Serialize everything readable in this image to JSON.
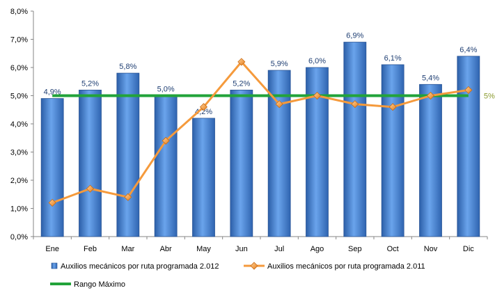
{
  "chart_data": {
    "type": "bar",
    "categories": [
      "Ene",
      "Feb",
      "Mar",
      "Abr",
      "May",
      "Jun",
      "Jul",
      "Ago",
      "Sep",
      "Oct",
      "Nov",
      "Dic"
    ],
    "series": [
      {
        "name": "Auxilios mecánicos por ruta programada 2.012",
        "kind": "bar",
        "color": "#4a86d8",
        "values": [
          4.9,
          5.2,
          5.8,
          5.0,
          4.2,
          5.2,
          5.9,
          6.0,
          6.9,
          6.1,
          5.4,
          6.4
        ],
        "labels": [
          "4,9%",
          "5,2%",
          "5,8%",
          "5,0%",
          "4,2%",
          "5,2%",
          "5,9%",
          "6,0%",
          "6,9%",
          "6,1%",
          "5,4%",
          "6,4%"
        ]
      },
      {
        "name": "Auxilios mecánicos por ruta programada 2.011",
        "kind": "line",
        "marker": "diamond",
        "color": "#f59a3c",
        "values": [
          1.2,
          1.7,
          1.4,
          3.4,
          4.6,
          6.2,
          4.7,
          5.0,
          4.7,
          4.6,
          5.0,
          5.2
        ]
      },
      {
        "name": "Rango Máximo",
        "kind": "line",
        "color": "#22a33a",
        "values": [
          5.0,
          5.0,
          5.0,
          5.0,
          5.0,
          5.0,
          5.0,
          5.0,
          5.0,
          5.0,
          5.0,
          5.0
        ],
        "end_label": "5%"
      }
    ],
    "ylim": [
      0,
      8
    ],
    "yticks": [
      0,
      1,
      2,
      3,
      4,
      5,
      6,
      7,
      8
    ],
    "ytick_labels": [
      "0,0%",
      "1,0%",
      "2,0%",
      "3,0%",
      "4,0%",
      "5,0%",
      "6,0%",
      "7,0%",
      "8,0%"
    ],
    "title": "",
    "xlabel": "",
    "ylabel": "",
    "grid": false,
    "legend_position": "bottom"
  }
}
